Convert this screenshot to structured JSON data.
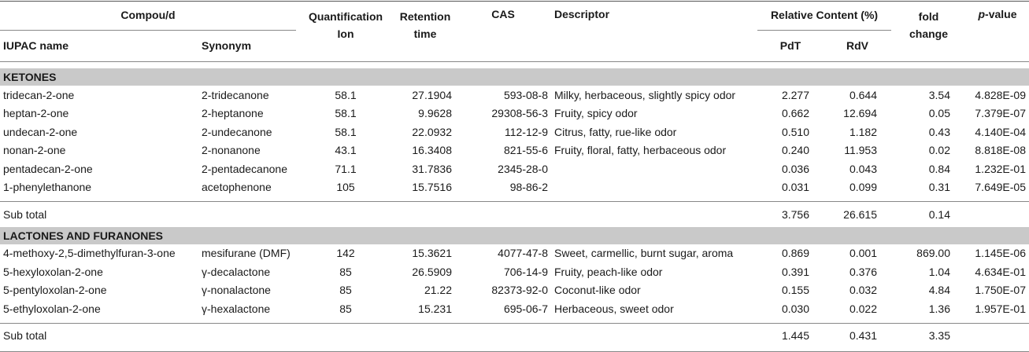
{
  "header": {
    "compound": "Compou/d",
    "iupac": "IUPAC name",
    "synonym": "Synonym",
    "quant_ion_1": "Quantification",
    "quant_ion_2": "Ion",
    "retention_1": "Retention",
    "retention_2": "time",
    "cas": "CAS",
    "descriptor": "Descriptor",
    "relative_content": "Relative Content (%)",
    "pdt": "PdT",
    "rdv": "RdV",
    "fold_1": "fold",
    "fold_2": "change",
    "pvalue_p": "p",
    "pvalue_rest": "-value"
  },
  "sections": [
    {
      "title": "KETONES",
      "rows": [
        {
          "iupac": "tridecan-2-one",
          "synonym": "2-tridecanone",
          "ion": "58.1",
          "rt": "27.1904",
          "cas": "593-08-8",
          "descriptor": "Milky, herbaceous, slightly spicy odor",
          "pdt": "2.277",
          "rdv": "0.644",
          "fold": "3.54",
          "p": "4.828E-09"
        },
        {
          "iupac": "heptan-2-one",
          "synonym": "2-heptanone",
          "ion": "58.1",
          "rt": "9.9628",
          "cas": "29308-56-3",
          "descriptor": "Fruity, spicy odor",
          "pdt": "0.662",
          "rdv": "12.694",
          "fold": "0.05",
          "p": "7.379E-07"
        },
        {
          "iupac": "undecan-2-one",
          "synonym": "2-undecanone",
          "ion": "58.1",
          "rt": "22.0932",
          "cas": "112-12-9",
          "descriptor": "Citrus, fatty, rue-like odor",
          "pdt": "0.510",
          "rdv": "1.182",
          "fold": "0.43",
          "p": "4.140E-04"
        },
        {
          "iupac": "nonan-2-one",
          "synonym": "2-nonanone",
          "ion": "43.1",
          "rt": "16.3408",
          "cas": "821-55-6",
          "descriptor": "Fruity, floral, fatty, herbaceous odor",
          "pdt": "0.240",
          "rdv": "11.953",
          "fold": "0.02",
          "p": "8.818E-08"
        },
        {
          "iupac": "pentadecan-2-one",
          "synonym": "2-pentadecanone",
          "ion": "71.1",
          "rt": "31.7836",
          "cas": "2345-28-0",
          "descriptor": "",
          "pdt": "0.036",
          "rdv": "0.043",
          "fold": "0.84",
          "p": "1.232E-01"
        },
        {
          "iupac": "1-phenylethanone",
          "synonym": "acetophenone",
          "ion": "105",
          "rt": "15.7516",
          "cas": "98-86-2",
          "descriptor": "",
          "pdt": "0.031",
          "rdv": "0.099",
          "fold": "0.31",
          "p": "7.649E-05"
        }
      ],
      "subtotal": {
        "label": "Sub total",
        "pdt": "3.756",
        "rdv": "26.615",
        "fold": "0.14",
        "p": ""
      }
    },
    {
      "title": "LACTONES AND FURANONES",
      "rows": [
        {
          "iupac": "4-methoxy-2,5-dimethylfuran-3-one",
          "synonym": "mesifurane (DMF)",
          "ion": "142",
          "rt": "15.3621",
          "cas": "4077-47-8",
          "descriptor": "Sweet, carmellic, burnt sugar, aroma",
          "pdt": "0.869",
          "rdv": "0.001",
          "fold": "869.00",
          "p": "1.145E-06"
        },
        {
          "iupac": "5-hexyloxolan-2-one",
          "synonym": "γ-decalactone",
          "ion": "85",
          "rt": "26.5909",
          "cas": "706-14-9",
          "descriptor": "Fruity, peach-like odor",
          "pdt": "0.391",
          "rdv": "0.376",
          "fold": "1.04",
          "p": "4.634E-01"
        },
        {
          "iupac": "5-pentyloxolan-2-one",
          "synonym": "γ-nonalactone",
          "ion": "85",
          "rt": "21.22",
          "cas": "82373-92-0",
          "descriptor": "Coconut-like odor",
          "pdt": "0.155",
          "rdv": "0.032",
          "fold": "4.84",
          "p": "1.750E-07"
        },
        {
          "iupac": "5-ethyloxolan-2-one",
          "synonym": "γ-hexalactone",
          "ion": "85",
          "rt": "15.231",
          "cas": "695-06-7",
          "descriptor": "Herbaceous, sweet odor",
          "pdt": "0.030",
          "rdv": "0.022",
          "fold": "1.36",
          "p": "1.957E-01"
        }
      ],
      "subtotal": {
        "label": "Sub total",
        "pdt": "1.445",
        "rdv": "0.431",
        "fold": "3.35",
        "p": ""
      }
    }
  ]
}
